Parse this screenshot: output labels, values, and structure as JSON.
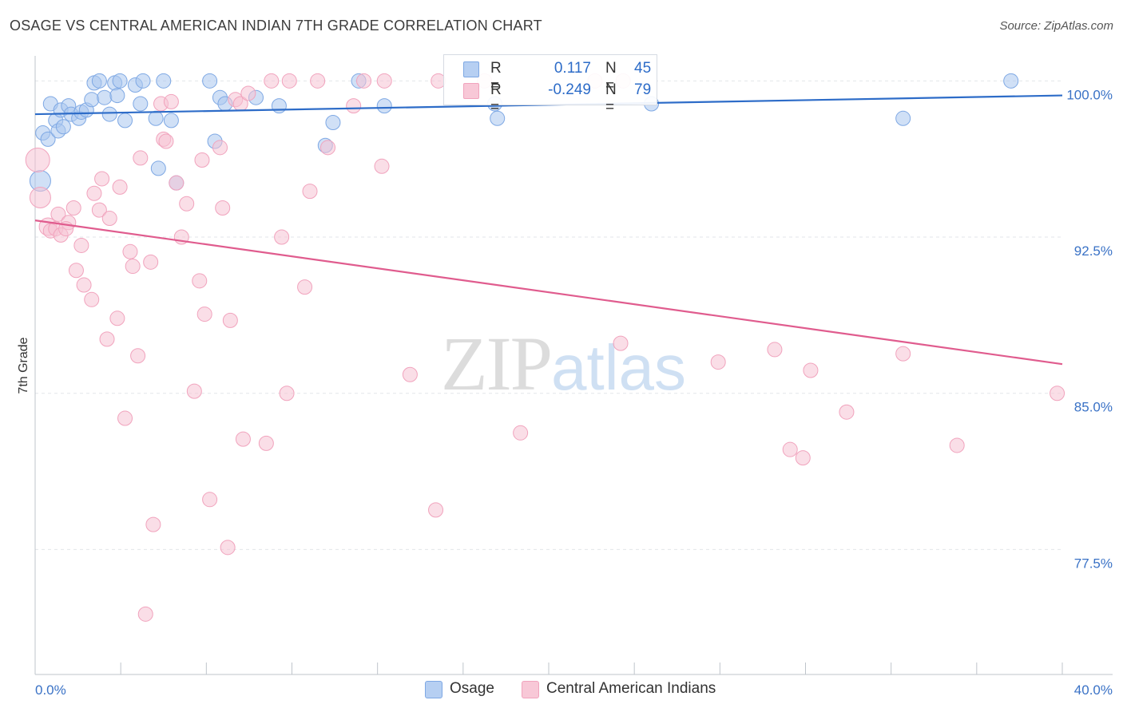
{
  "header": {
    "title": "OSAGE VS CENTRAL AMERICAN INDIAN 7TH GRADE CORRELATION CHART",
    "source": "Source: ZipAtlas.com"
  },
  "legend": {
    "rows": [
      {
        "r_label": "R =",
        "r_value": "0.117",
        "n_label": "N =",
        "n_value": "45",
        "color": "#a9c6ee"
      },
      {
        "r_label": "R =",
        "r_value": "-0.249",
        "n_label": "N =",
        "n_value": "79",
        "color": "#f6b6cb"
      }
    ]
  },
  "watermark": {
    "zip": "ZIP",
    "atlas": "atlas"
  },
  "chart_data": {
    "type": "scatter",
    "title": "OSAGE VS CENTRAL AMERICAN INDIAN 7TH GRADE CORRELATION CHART",
    "xlabel": "",
    "ylabel": "7th Grade",
    "xlim": [
      0,
      40
    ],
    "ylim": [
      71.5,
      101.2
    ],
    "x_tick_labels": [
      {
        "value": 0,
        "label": "0.0%"
      },
      {
        "value": 40,
        "label": "40.0%"
      }
    ],
    "y_tick_labels": [
      {
        "value": 100,
        "label": "100.0%"
      },
      {
        "value": 92.5,
        "label": "92.5%"
      },
      {
        "value": 85,
        "label": "85.0%"
      },
      {
        "value": 77.5,
        "label": "77.5%"
      }
    ],
    "grid": true,
    "legend_position": "top-center",
    "series": [
      {
        "name": "Osage",
        "color": "#7ea8e4",
        "fill": "#a9c6ee",
        "line_color": "#2d6cc8",
        "trend": {
          "x": [
            0,
            40
          ],
          "y": [
            98.4,
            99.3
          ]
        },
        "points": [
          [
            0.2,
            95.2,
            13
          ],
          [
            0.3,
            97.5,
            9
          ],
          [
            0.5,
            97.2,
            9
          ],
          [
            0.6,
            98.9,
            9
          ],
          [
            0.8,
            98.1,
            9
          ],
          [
            0.9,
            97.6,
            9
          ],
          [
            1.0,
            98.6,
            9
          ],
          [
            1.1,
            97.8,
            9
          ],
          [
            1.3,
            98.8,
            9
          ],
          [
            1.4,
            98.4,
            9
          ],
          [
            1.7,
            98.2,
            9
          ],
          [
            1.8,
            98.5,
            9
          ],
          [
            2.0,
            98.6,
            9
          ],
          [
            2.2,
            99.1,
            9
          ],
          [
            2.3,
            99.9,
            9
          ],
          [
            2.5,
            100.0,
            9
          ],
          [
            2.7,
            99.2,
            9
          ],
          [
            2.9,
            98.4,
            9
          ],
          [
            3.1,
            99.9,
            9
          ],
          [
            3.2,
            99.3,
            9
          ],
          [
            3.3,
            100.0,
            9
          ],
          [
            3.5,
            98.1,
            9
          ],
          [
            3.9,
            99.8,
            9
          ],
          [
            4.1,
            98.9,
            9
          ],
          [
            4.2,
            100.0,
            9
          ],
          [
            4.7,
            98.2,
            9
          ],
          [
            4.8,
            95.8,
            9
          ],
          [
            5.0,
            100.0,
            9
          ],
          [
            5.3,
            98.1,
            9
          ],
          [
            5.5,
            95.1,
            9
          ],
          [
            6.8,
            100.0,
            9
          ],
          [
            7.0,
            97.1,
            9
          ],
          [
            7.2,
            99.2,
            9
          ],
          [
            7.4,
            98.9,
            9
          ],
          [
            8.6,
            99.2,
            9
          ],
          [
            9.5,
            98.8,
            9
          ],
          [
            11.3,
            96.9,
            9
          ],
          [
            11.6,
            98.0,
            9
          ],
          [
            12.6,
            100.0,
            9
          ],
          [
            13.6,
            98.8,
            9
          ],
          [
            17.9,
            98.9,
            9
          ],
          [
            18.0,
            98.2,
            9
          ],
          [
            24.0,
            98.9,
            9
          ],
          [
            33.8,
            98.2,
            9
          ],
          [
            38.0,
            100.0,
            9
          ]
        ]
      },
      {
        "name": "Central American Indians",
        "color": "#f1a3bd",
        "fill": "#f6c3d3",
        "line_color": "#e05c8e",
        "trend": {
          "x": [
            0,
            40
          ],
          "y": [
            93.3,
            86.4
          ]
        },
        "points": [
          [
            0.1,
            96.2,
            15
          ],
          [
            0.2,
            94.4,
            13
          ],
          [
            0.5,
            93.0,
            11
          ],
          [
            0.6,
            92.8,
            9
          ],
          [
            0.8,
            92.9,
            9
          ],
          [
            0.9,
            93.6,
            9
          ],
          [
            1.0,
            92.6,
            9
          ],
          [
            1.3,
            93.2,
            9
          ],
          [
            1.5,
            93.9,
            9
          ],
          [
            1.6,
            90.9,
            9
          ],
          [
            1.8,
            92.1,
            9
          ],
          [
            1.9,
            90.2,
            9
          ],
          [
            2.2,
            89.5,
            9
          ],
          [
            2.3,
            94.6,
            9
          ],
          [
            2.5,
            93.8,
            9
          ],
          [
            2.6,
            95.3,
            9
          ],
          [
            2.8,
            87.6,
            9
          ],
          [
            2.9,
            93.4,
            9
          ],
          [
            3.2,
            88.6,
            9
          ],
          [
            3.3,
            94.9,
            9
          ],
          [
            3.5,
            83.8,
            9
          ],
          [
            3.7,
            91.8,
            9
          ],
          [
            3.8,
            91.1,
            9
          ],
          [
            4.0,
            86.8,
            9
          ],
          [
            4.1,
            96.3,
            9
          ],
          [
            4.3,
            74.4,
            9
          ],
          [
            4.5,
            91.3,
            9
          ],
          [
            4.6,
            78.7,
            9
          ],
          [
            4.9,
            98.9,
            9
          ],
          [
            5.0,
            97.2,
            9
          ],
          [
            5.1,
            97.1,
            9
          ],
          [
            5.3,
            99.0,
            9
          ],
          [
            5.5,
            95.1,
            9
          ],
          [
            5.7,
            92.5,
            9
          ],
          [
            5.9,
            94.1,
            9
          ],
          [
            6.2,
            85.1,
            9
          ],
          [
            6.4,
            90.4,
            9
          ],
          [
            6.5,
            96.2,
            9
          ],
          [
            6.6,
            88.8,
            9
          ],
          [
            6.8,
            79.9,
            9
          ],
          [
            7.2,
            96.8,
            9
          ],
          [
            7.3,
            93.9,
            9
          ],
          [
            7.5,
            77.6,
            9
          ],
          [
            7.6,
            88.5,
            9
          ],
          [
            7.8,
            99.1,
            9
          ],
          [
            8.0,
            98.9,
            9
          ],
          [
            8.1,
            82.8,
            9
          ],
          [
            8.3,
            99.4,
            9
          ],
          [
            9.0,
            82.6,
            9
          ],
          [
            9.2,
            100.0,
            9
          ],
          [
            9.6,
            92.5,
            9
          ],
          [
            9.8,
            85.0,
            9
          ],
          [
            9.9,
            100.0,
            9
          ],
          [
            10.5,
            90.1,
            9
          ],
          [
            10.7,
            94.7,
            9
          ],
          [
            11.0,
            100.0,
            9
          ],
          [
            11.4,
            96.8,
            9
          ],
          [
            12.4,
            98.8,
            9
          ],
          [
            12.8,
            100.0,
            9
          ],
          [
            13.5,
            95.9,
            9
          ],
          [
            13.6,
            100.0,
            9
          ],
          [
            14.6,
            85.9,
            9
          ],
          [
            15.6,
            79.4,
            9
          ],
          [
            15.7,
            100.0,
            9
          ],
          [
            17.5,
            100.0,
            9
          ],
          [
            18.9,
            83.1,
            9
          ],
          [
            22.8,
            87.4,
            9
          ],
          [
            26.6,
            86.5,
            9
          ],
          [
            28.8,
            87.1,
            9
          ],
          [
            29.4,
            82.3,
            9
          ],
          [
            29.9,
            81.9,
            9
          ],
          [
            30.2,
            86.1,
            9
          ],
          [
            31.6,
            84.1,
            9
          ],
          [
            33.8,
            86.9,
            9
          ],
          [
            35.9,
            82.5,
            9
          ],
          [
            39.8,
            85.0,
            9
          ],
          [
            22.9,
            100.0,
            9
          ],
          [
            21.8,
            100.0,
            9
          ],
          [
            1.2,
            92.9,
            9
          ]
        ]
      }
    ]
  }
}
